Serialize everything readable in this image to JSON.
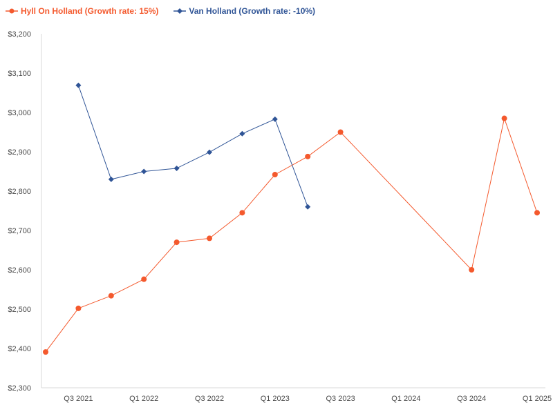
{
  "chart_data": {
    "type": "line",
    "title": "",
    "xlabel": "",
    "ylabel": "",
    "ylim": [
      2300,
      3200
    ],
    "y_ticks": [
      2300,
      2400,
      2500,
      2600,
      2700,
      2800,
      2900,
      3000,
      3100,
      3200
    ],
    "y_tick_labels": [
      "$2,300",
      "$2,400",
      "$2,500",
      "$2,600",
      "$2,700",
      "$2,800",
      "$2,900",
      "$3,000",
      "$3,100",
      "$3,200"
    ],
    "categories": [
      "Q2 2021",
      "Q3 2021",
      "Q4 2021",
      "Q1 2022",
      "Q2 2022",
      "Q3 2022",
      "Q4 2022",
      "Q1 2023",
      "Q2 2023",
      "Q3 2023",
      "Q4 2023",
      "Q1 2024",
      "Q2 2024",
      "Q3 2024",
      "Q4 2024",
      "Q1 2025"
    ],
    "x_tick_labels": [
      "",
      "Q3 2021",
      "",
      "Q1 2022",
      "",
      "Q3 2022",
      "",
      "Q1 2023",
      "",
      "Q3 2023",
      "",
      "Q1 2024",
      "",
      "Q3 2024",
      "",
      "Q1 2025"
    ],
    "grid": false,
    "legend_position": "top-left",
    "series": [
      {
        "name": "Hyll On Holland (Growth rate: 15%)",
        "color": "#f4592d",
        "marker": "circle",
        "values": [
          2391,
          2502,
          2534,
          2576,
          2670,
          2680,
          2745,
          2842,
          2888,
          2950,
          null,
          null,
          null,
          2600,
          2985,
          2745
        ]
      },
      {
        "name": "Van Holland (Growth rate: -10%)",
        "color": "#2f5496",
        "marker": "diamond",
        "values": [
          null,
          3069,
          2830,
          2850,
          2858,
          2899,
          2946,
          2983,
          2760,
          null,
          null,
          null,
          null,
          null,
          null,
          null
        ]
      }
    ]
  }
}
